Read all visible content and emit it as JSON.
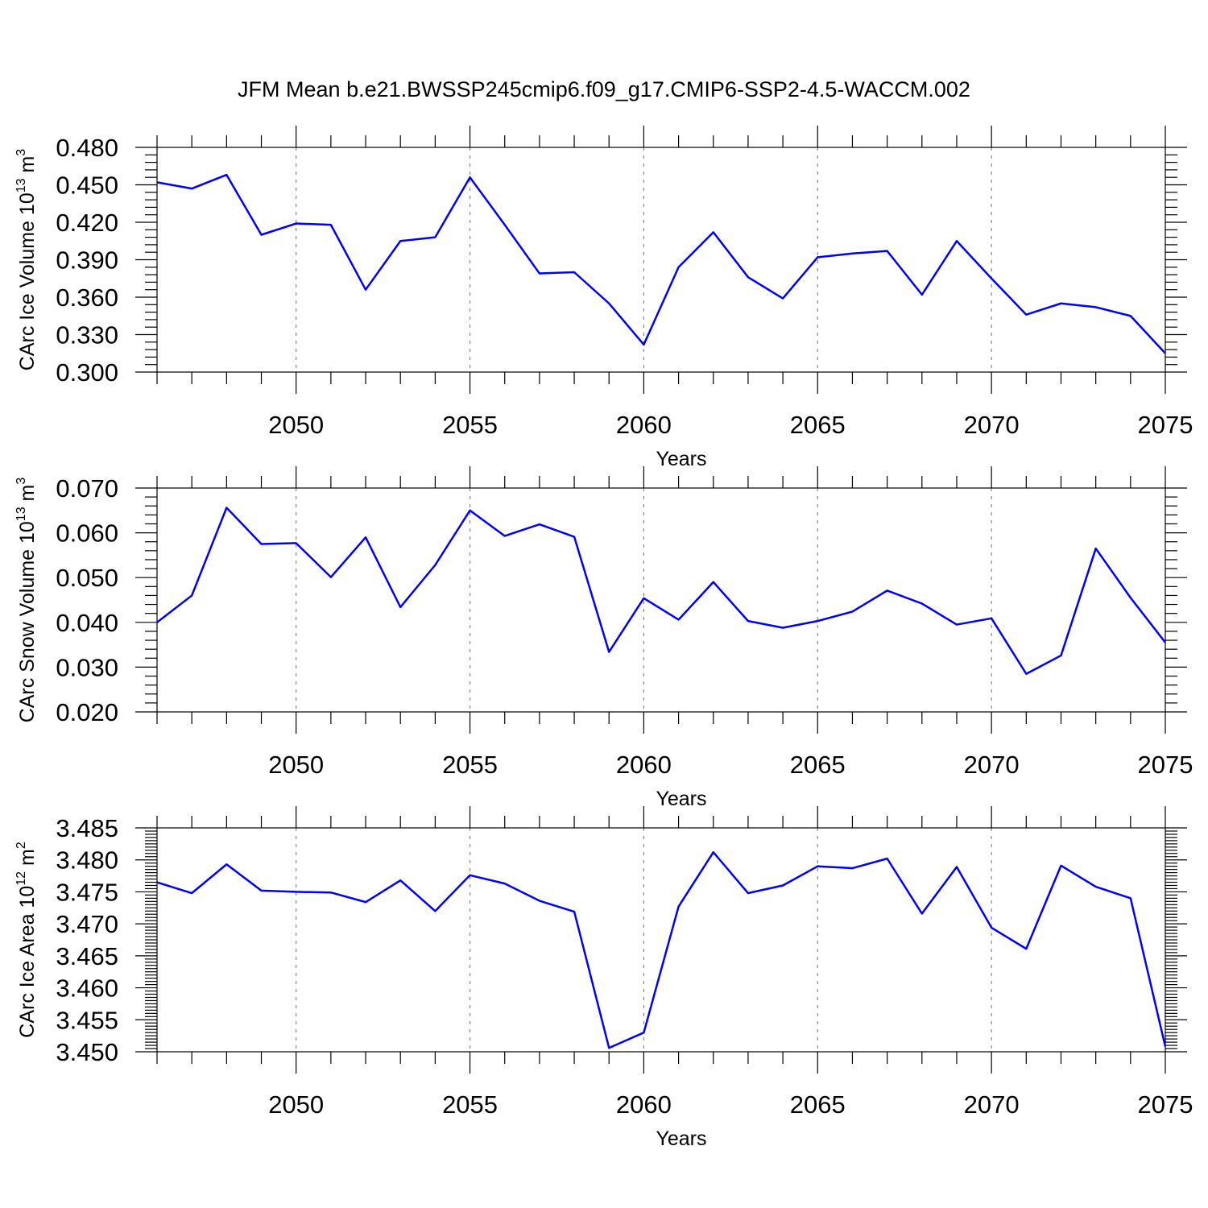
{
  "title": "JFM Mean b.e21.BWSSP245cmip6.f09_g17.CMIP6-SSP2-4.5-WACCM.002",
  "chart_data": [
    {
      "type": "line",
      "title": "",
      "xlabel": "Years",
      "ylabel": {
        "text": "CArc Ice Volume 10",
        "exp": "13",
        "unit": " m",
        "unit_exp": "3"
      },
      "xlim": [
        2046,
        2075
      ],
      "ylim": [
        0.3,
        0.48
      ],
      "x_ticks": [
        "2050",
        "2055",
        "2060",
        "2065",
        "2070",
        "2075"
      ],
      "y_ticks": [
        "0.300",
        "0.330",
        "0.360",
        "0.390",
        "0.420",
        "0.450",
        "0.480"
      ],
      "grid": "vertical-dashed-at-major-x",
      "series": [
        {
          "color": "#0000ff",
          "x": [
            2046,
            2047,
            2048,
            2049,
            2050,
            2051,
            2052,
            2053,
            2054,
            2055,
            2056,
            2057,
            2058,
            2059,
            2060,
            2061,
            2062,
            2063,
            2064,
            2065,
            2066,
            2067,
            2068,
            2069,
            2070,
            2071,
            2072,
            2073,
            2074,
            2075
          ],
          "values": [
            0.452,
            0.447,
            0.458,
            0.41,
            0.419,
            0.418,
            0.366,
            0.405,
            0.408,
            0.456,
            0.418,
            0.379,
            0.38,
            0.355,
            0.322,
            0.384,
            0.412,
            0.376,
            0.359,
            0.392,
            0.395,
            0.397,
            0.362,
            0.405,
            0.375,
            0.346,
            0.355,
            0.352,
            0.345,
            0.315
          ]
        }
      ]
    },
    {
      "type": "line",
      "title": "",
      "xlabel": "Years",
      "ylabel": {
        "text": "CArc Snow Volume 10",
        "exp": "13",
        "unit": " m",
        "unit_exp": "3"
      },
      "xlim": [
        2046,
        2075
      ],
      "ylim": [
        0.02,
        0.07
      ],
      "x_ticks": [
        "2050",
        "2055",
        "2060",
        "2065",
        "2070",
        "2075"
      ],
      "y_ticks": [
        "0.020",
        "0.030",
        "0.040",
        "0.050",
        "0.060",
        "0.070"
      ],
      "grid": "vertical-dashed-at-major-x",
      "series": [
        {
          "color": "#0000ff",
          "x": [
            2046,
            2047,
            2048,
            2049,
            2050,
            2051,
            2052,
            2053,
            2054,
            2055,
            2056,
            2057,
            2058,
            2059,
            2060,
            2061,
            2062,
            2063,
            2064,
            2065,
            2066,
            2067,
            2068,
            2069,
            2070,
            2071,
            2072,
            2073,
            2074,
            2075
          ],
          "values": [
            0.04,
            0.046,
            0.0656,
            0.0575,
            0.0577,
            0.0501,
            0.059,
            0.0434,
            0.0528,
            0.065,
            0.0593,
            0.0619,
            0.0591,
            0.0334,
            0.0454,
            0.0406,
            0.049,
            0.0403,
            0.0388,
            0.0403,
            0.0424,
            0.0471,
            0.0442,
            0.0395,
            0.0409,
            0.0285,
            0.0326,
            0.0565,
            0.0455,
            0.0355
          ]
        }
      ]
    },
    {
      "type": "line",
      "title": "",
      "xlabel": "Years",
      "ylabel": {
        "text": "CArc Ice Area 10",
        "exp": "12",
        "unit": " m",
        "unit_exp": "2"
      },
      "xlim": [
        2046,
        2075
      ],
      "ylim": [
        3.45,
        3.485
      ],
      "x_ticks": [
        "2050",
        "2055",
        "2060",
        "2065",
        "2070",
        "2075"
      ],
      "y_ticks": [
        "3.450",
        "3.455",
        "3.460",
        "3.465",
        "3.470",
        "3.475",
        "3.480",
        "3.485"
      ],
      "grid": "vertical-dashed-at-major-x",
      "series": [
        {
          "color": "#0000ff",
          "x": [
            2046,
            2047,
            2048,
            2049,
            2050,
            2051,
            2052,
            2053,
            2054,
            2055,
            2056,
            2057,
            2058,
            2059,
            2060,
            2061,
            2062,
            2063,
            2064,
            2065,
            2066,
            2067,
            2068,
            2069,
            2070,
            2071,
            2072,
            2073,
            2074,
            2075
          ],
          "values": [
            3.4765,
            3.4748,
            3.4793,
            3.4752,
            3.475,
            3.4749,
            3.4734,
            3.4768,
            3.472,
            3.4776,
            3.4763,
            3.4736,
            3.4719,
            3.4506,
            3.453,
            3.4727,
            3.4812,
            3.4748,
            3.476,
            3.479,
            3.4787,
            3.4802,
            3.4716,
            3.4789,
            3.4694,
            3.4661,
            3.4791,
            3.4758,
            3.474,
            3.4508
          ]
        }
      ]
    }
  ]
}
